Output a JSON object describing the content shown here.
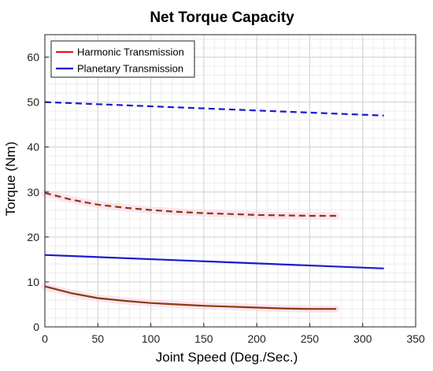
{
  "chart_data": {
    "type": "line",
    "title": "Net Torque Capacity",
    "xlabel": "Joint Speed (Deg./Sec.)",
    "ylabel": "Torque (Nm)",
    "xlim": [
      0,
      350
    ],
    "ylim": [
      0,
      65
    ],
    "xticks": [
      0,
      50,
      100,
      150,
      200,
      250,
      300,
      350
    ],
    "yticks": [
      0,
      10,
      20,
      30,
      40,
      50,
      60
    ],
    "grid": true,
    "minor_grid": true,
    "legend_position": "top-left",
    "legend": [
      {
        "name": "Harmonic Transmission",
        "color": "#e8141e"
      },
      {
        "name": "Planetary Transmission",
        "color": "#1616c8"
      }
    ],
    "series": [
      {
        "legend": "Planetary Transmission",
        "style": "dashed",
        "color": "#1a1ad0",
        "x": [
          0,
          320
        ],
        "y": [
          50,
          47
        ]
      },
      {
        "legend": "Planetary Transmission",
        "style": "solid",
        "color": "#1a1ad0",
        "x": [
          0,
          320
        ],
        "y": [
          16,
          13
        ]
      },
      {
        "legend": "Harmonic Transmission",
        "style": "dashed",
        "color": "#8a3a0e",
        "x": [
          0,
          25,
          50,
          75,
          100,
          125,
          150,
          175,
          200,
          225,
          250,
          275
        ],
        "y": [
          29.8,
          28.3,
          27.2,
          26.5,
          26.0,
          25.6,
          25.3,
          25.1,
          24.9,
          24.8,
          24.7,
          24.7
        ]
      },
      {
        "legend": "Harmonic Transmission",
        "style": "solid",
        "color": "#8a3a0e",
        "x": [
          0,
          25,
          50,
          75,
          100,
          125,
          150,
          175,
          200,
          225,
          250,
          275
        ],
        "y": [
          9.0,
          7.5,
          6.4,
          5.8,
          5.3,
          5.0,
          4.7,
          4.5,
          4.3,
          4.1,
          4.0,
          4.0
        ]
      }
    ]
  }
}
